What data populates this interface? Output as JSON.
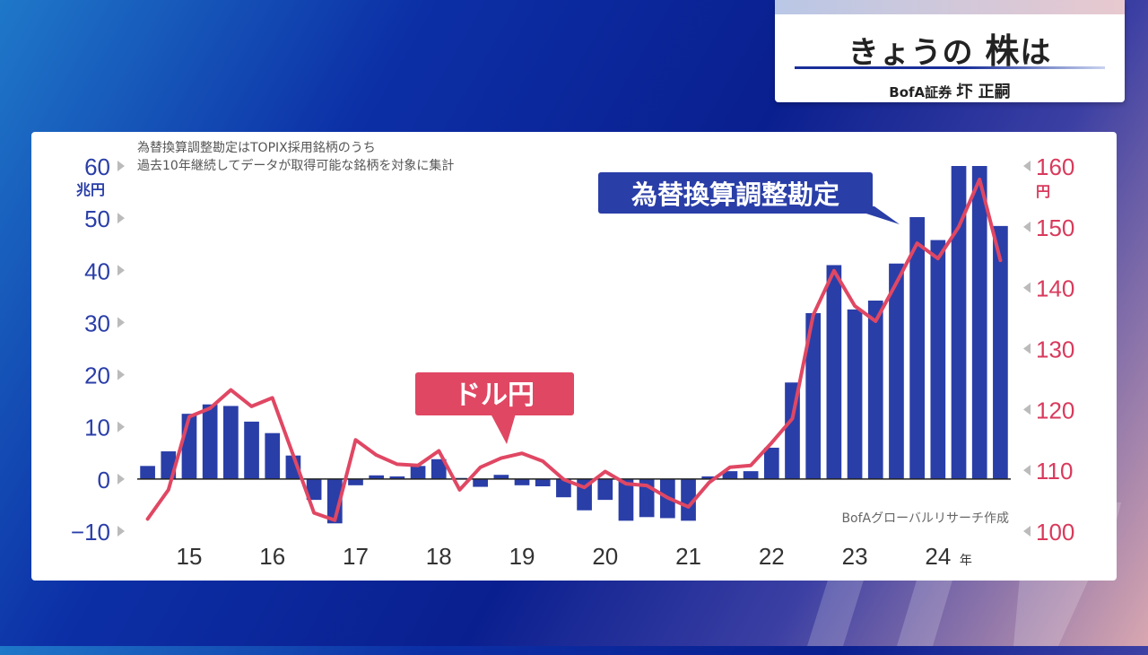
{
  "header": {
    "title_pre": "きょうの ",
    "title_big": "株",
    "title_post": "は",
    "firm": "BofA証券 ",
    "person": "圷 正嗣"
  },
  "notes": {
    "line1": "為替換算調整勘定はTOPIX採用銘柄のうち",
    "line2": "過去10年継続してデータが取得可能な銘柄を対象に集計",
    "source": "BofAグローバルリサーチ作成"
  },
  "labels": {
    "bar_series": "為替換算調整勘定",
    "line_series": "ドル円"
  },
  "colors": {
    "bar": "#2a3ea8",
    "line": "#e04763",
    "left_axis": "#2a3ea8",
    "right_axis": "#d93a5c"
  },
  "chart_data": {
    "type": "bar+line",
    "x_tick_labels": [
      "15",
      "16",
      "17",
      "18",
      "19",
      "20",
      "21",
      "22",
      "23",
      "24"
    ],
    "x_unit": "年",
    "left_axis": {
      "unit": "兆円",
      "ticks": [
        "60",
        "50",
        "40",
        "30",
        "20",
        "10",
        "0",
        "−10"
      ],
      "ylim": [
        -10,
        60
      ]
    },
    "right_axis": {
      "unit": "円",
      "ticks": [
        "160",
        "150",
        "140",
        "130",
        "120",
        "110",
        "100"
      ],
      "ylim": [
        100,
        160
      ]
    },
    "quarters_start": "2014-Q3",
    "bars": [
      2.5,
      5.3,
      12.5,
      14.3,
      14.0,
      11.0,
      8.8,
      4.5,
      -4.0,
      -8.5,
      -1.2,
      0.7,
      0.5,
      2.5,
      3.8,
      0.2,
      -1.5,
      0.8,
      -1.2,
      -1.4,
      -3.5,
      -6.0,
      -4.0,
      -8.0,
      -7.3,
      -7.5,
      -8.0,
      0.5,
      1.5,
      1.5,
      6.0,
      18.5,
      31.8,
      41.0,
      32.5,
      34.2,
      41.3,
      50.2,
      45.8,
      60.0,
      60.0,
      48.5
    ],
    "usdjpy": [
      102.0,
      106.8,
      118.8,
      120.2,
      123.2,
      120.5,
      121.9,
      112.5,
      103.0,
      101.8,
      115.0,
      112.5,
      111.0,
      110.8,
      113.2,
      106.8,
      110.5,
      112.0,
      112.8,
      111.5,
      108.5,
      107.2,
      109.8,
      107.8,
      107.5,
      105.5,
      104.0,
      108.0,
      110.5,
      110.8,
      114.5,
      118.5,
      135.5,
      142.8,
      137.0,
      134.5,
      140.8,
      147.3,
      144.8,
      150.0,
      157.8,
      144.5
    ]
  }
}
